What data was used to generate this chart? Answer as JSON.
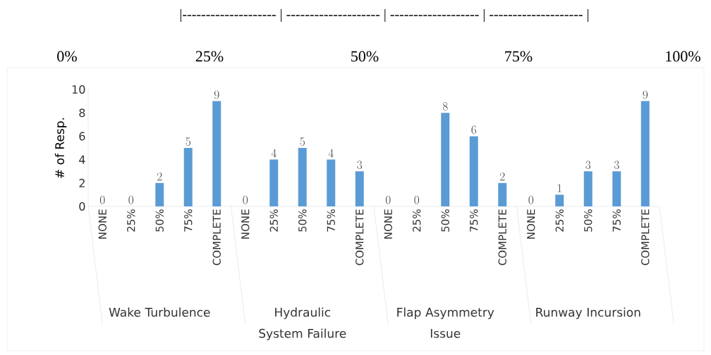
{
  "chart_data": {
    "type": "bar",
    "ylabel": "# of Resp.",
    "categories": [
      "NONE",
      "25%",
      "50%",
      "75%",
      "COMPLETE",
      "NONE",
      "25%",
      "50%",
      "75%",
      "COMPLETE",
      "NONE",
      "25%",
      "50%",
      "75%",
      "COMPLETE",
      "NONE",
      "25%",
      "50%",
      "75%",
      "COMPLETE"
    ],
    "values": [
      0,
      0,
      2,
      5,
      9,
      0,
      4,
      5,
      4,
      3,
      0,
      0,
      8,
      6,
      2,
      0,
      1,
      3,
      3,
      9
    ],
    "color": "#5b9bd5",
    "data_labels": true,
    "ylim": [
      0,
      10
    ],
    "yticks": [
      0,
      2,
      4,
      6,
      8,
      10
    ],
    "annotations": [
      "|-------------------- | -------------------- | ------------------- | -------------------- |",
      "0%",
      "25%",
      "50%",
      "75%",
      "100%",
      "Wake Turbulence",
      "Hydraulic System Failure",
      "Flap Asymmetry Issue",
      "Runway Incursion"
    ]
  }
}
